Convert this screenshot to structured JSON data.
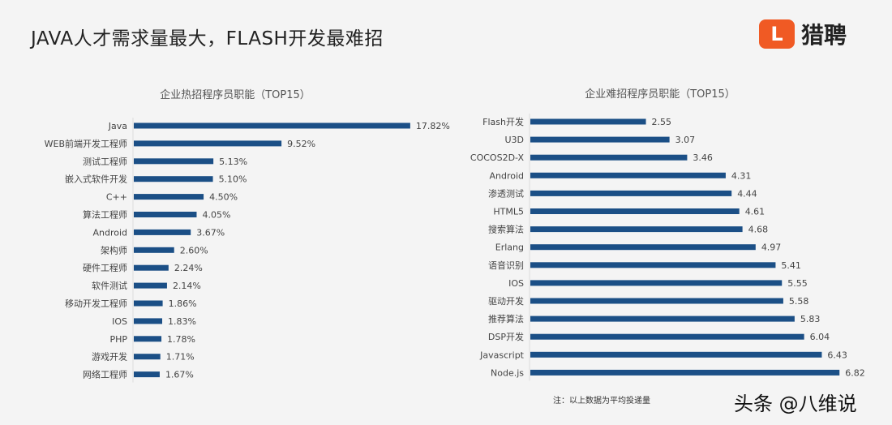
{
  "headline": "JAVA人才需求量最大，FLASH开发最难招",
  "logo": {
    "mark": "L",
    "text": "猎聘",
    "color": "#f05a24"
  },
  "note": "注：以上数据为平均投递量",
  "watermark": "头条 @八维说",
  "bar_color": "#1b4f86",
  "chart_data": [
    {
      "type": "bar",
      "orientation": "horizontal",
      "title": "企业热招程序员职能（TOP15）",
      "categories": [
        "Java",
        "WEB前端开发工程师",
        "测试工程师",
        "嵌入式软件开发",
        "C++",
        "算法工程师",
        "Android",
        "架构师",
        "硬件工程师",
        "软件测试",
        "移动开发工程师",
        "IOS",
        "PHP",
        "游戏开发",
        "网络工程师"
      ],
      "values": [
        17.82,
        9.52,
        5.13,
        5.1,
        4.5,
        4.05,
        3.67,
        2.6,
        2.24,
        2.14,
        1.86,
        1.83,
        1.78,
        1.71,
        1.67
      ],
      "value_labels": [
        "17.82%",
        "9.52%",
        "5.13%",
        "5.10%",
        "4.50%",
        "4.05%",
        "3.67%",
        "2.60%",
        "2.24%",
        "2.14%",
        "1.86%",
        "1.83%",
        "1.78%",
        "1.71%",
        "1.67%"
      ],
      "grid": false
    },
    {
      "type": "bar",
      "orientation": "horizontal",
      "title": "企业难招程序员职能（TOP15）",
      "categories": [
        "Flash开发",
        "U3D",
        "COCOS2D-X",
        "Android",
        "渗透测试",
        "HTML5",
        "搜索算法",
        "Erlang",
        "语音识别",
        "IOS",
        "驱动开发",
        "推荐算法",
        "DSP开发",
        "Javascript",
        "Node.js"
      ],
      "values": [
        2.55,
        3.07,
        3.46,
        4.31,
        4.44,
        4.61,
        4.68,
        4.97,
        5.41,
        5.55,
        5.58,
        5.83,
        6.04,
        6.43,
        6.82
      ],
      "value_labels": [
        "2.55",
        "3.07",
        "3.46",
        "4.31",
        "4.44",
        "4.61",
        "4.68",
        "4.97",
        "5.41",
        "5.55",
        "5.58",
        "5.83",
        "6.04",
        "6.43",
        "6.82"
      ],
      "grid": false
    }
  ]
}
